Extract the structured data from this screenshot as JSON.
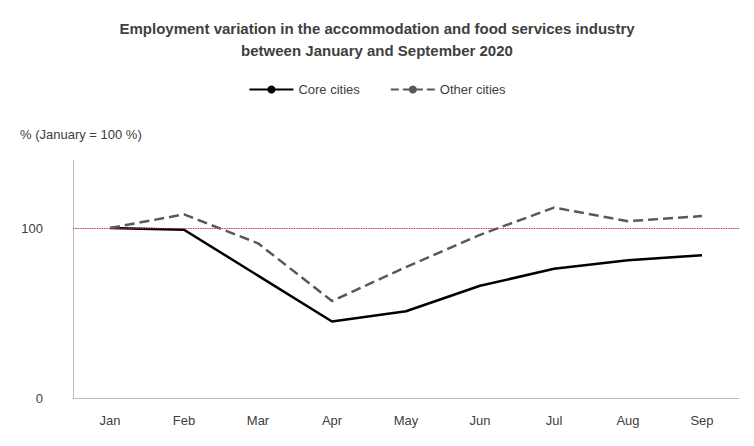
{
  "chart_data": {
    "type": "line",
    "title": "Employment variation in the accommodation and food services industry\nbetween January and September 2020",
    "y_label": "% (January = 100 %)",
    "categories": [
      "Jan",
      "Feb",
      "Mar",
      "Apr",
      "May",
      "Jun",
      "Jul",
      "Aug",
      "Sep"
    ],
    "series": [
      {
        "name": "Core cities",
        "color": "#000000",
        "line_style": "solid",
        "values": [
          100,
          99,
          72,
          45,
          51,
          66,
          76,
          81,
          84
        ]
      },
      {
        "name": "Other cities",
        "color": "#595959",
        "line_style": "dashed",
        "values": [
          100,
          108,
          91,
          57,
          77,
          96,
          112,
          104,
          107
        ]
      }
    ],
    "ylim": [
      0,
      140
    ],
    "yticks": [
      0,
      100
    ],
    "grid": true,
    "legend": "top"
  }
}
